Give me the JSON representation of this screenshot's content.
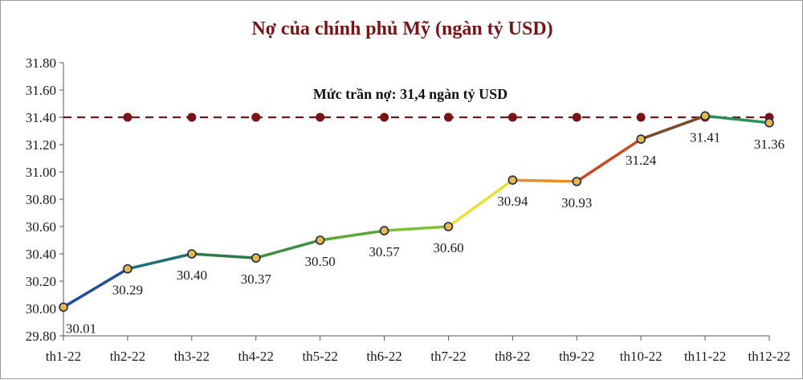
{
  "chart_data": {
    "type": "line",
    "title": "Nợ của chính phủ Mỹ (ngàn tỷ USD)",
    "categories": [
      "th1-22",
      "th2-22",
      "th3-22",
      "th4-22",
      "th5-22",
      "th6-22",
      "th7-22",
      "th8-22",
      "th9-22",
      "th10-22",
      "th11-22",
      "th12-22"
    ],
    "values": [
      30.01,
      30.29,
      30.4,
      30.37,
      30.5,
      30.57,
      30.6,
      30.94,
      30.93,
      31.24,
      31.41,
      31.36
    ],
    "data_labels": [
      "30.01",
      "30.29",
      "30.40",
      "30.37",
      "30.50",
      "30.57",
      "30.60",
      "30.94",
      "30.93",
      "31.24",
      "31.41",
      "31.36"
    ],
    "ylim": [
      29.8,
      31.8
    ],
    "yticks": [
      29.8,
      30.0,
      30.2,
      30.4,
      30.6,
      30.8,
      31.0,
      31.2,
      31.4,
      31.6,
      31.8
    ],
    "ytick_labels": [
      "29.80",
      "30.00",
      "30.20",
      "30.40",
      "30.60",
      "30.80",
      "31.00",
      "31.20",
      "31.40",
      "31.60",
      "31.80"
    ],
    "grid": false,
    "reference_line": {
      "value": 31.4,
      "label": "Mức trần nợ: 31,4 ngàn tỷ USD",
      "style": "dashed",
      "color": "#7a1414"
    },
    "segment_colors": [
      "#1f4e9a",
      "#1f6e7a",
      "#2a7a4a",
      "#3e8f45",
      "#5aa83e",
      "#7fbf3a",
      "#e6e22e",
      "#e2902a",
      "#c9491f",
      "#7a4a2a",
      "#2f8f5a"
    ],
    "point_fill": "#e8b84a"
  }
}
